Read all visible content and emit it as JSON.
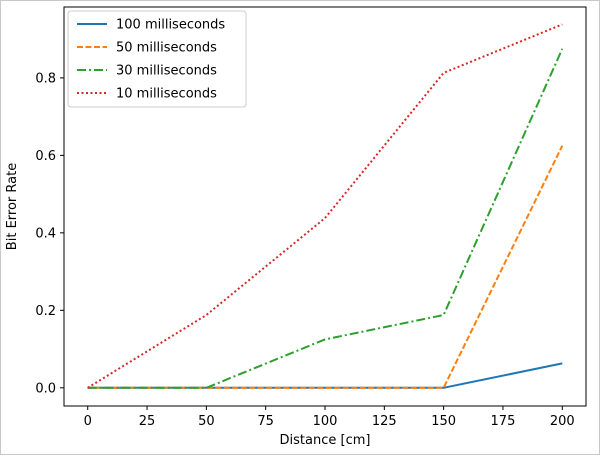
{
  "chart_data": {
    "type": "line",
    "title": "",
    "xlabel": "Distance [cm]",
    "ylabel": "Bit Error Rate",
    "x": [
      0,
      50,
      100,
      150,
      200
    ],
    "xlim": [
      -10,
      210
    ],
    "ylim": [
      -0.047,
      0.983
    ],
    "xticks": [
      0,
      25,
      50,
      75,
      100,
      125,
      150,
      175,
      200
    ],
    "xtick_labels": [
      "0",
      "25",
      "50",
      "75",
      "100",
      "125",
      "150",
      "175",
      "200"
    ],
    "yticks": [
      0.0,
      0.2,
      0.4,
      0.6,
      0.8
    ],
    "ytick_labels": [
      "0.0",
      "0.2",
      "0.4",
      "0.6",
      "0.8"
    ],
    "grid": false,
    "legend_position": "top-left",
    "series": [
      {
        "name": "100 milliseconds",
        "values": [
          0.0,
          0.0,
          0.0,
          0.0,
          0.063
        ],
        "color": "#1f77b4",
        "style": "solid"
      },
      {
        "name": "50 milliseconds",
        "values": [
          0.0,
          0.0,
          0.0,
          0.0,
          0.625
        ],
        "color": "#ff7f0e",
        "style": "dashed"
      },
      {
        "name": "30 milliseconds",
        "values": [
          0.0,
          0.0,
          0.125,
          0.188,
          0.875
        ],
        "color": "#2ca02c",
        "style": "dashdot"
      },
      {
        "name": "10 milliseconds",
        "values": [
          0.0,
          0.188,
          0.438,
          0.813,
          0.938
        ],
        "color": "#d62728",
        "style": "dotted"
      }
    ]
  }
}
